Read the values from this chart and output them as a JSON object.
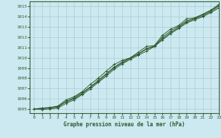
{
  "title": "Graphe pression niveau de la mer (hPa)",
  "bg_color": "#cce8f0",
  "grid_color": "#aacccc",
  "line_color": "#2d5a2d",
  "xlim": [
    -0.5,
    23
  ],
  "ylim": [
    1004.6,
    1015.5
  ],
  "yticks": [
    1005,
    1006,
    1007,
    1008,
    1009,
    1010,
    1011,
    1012,
    1013,
    1014,
    1015
  ],
  "xticks": [
    0,
    1,
    2,
    3,
    4,
    5,
    6,
    7,
    8,
    9,
    10,
    11,
    12,
    13,
    14,
    15,
    16,
    17,
    18,
    19,
    20,
    21,
    22,
    23
  ],
  "series": [
    [
      1005.0,
      1005.1,
      1005.15,
      1005.3,
      1005.9,
      1006.2,
      1006.7,
      1007.4,
      1008.0,
      1008.7,
      1009.35,
      1009.75,
      1010.0,
      1010.55,
      1011.1,
      1011.2,
      1012.2,
      1012.8,
      1013.15,
      1013.8,
      1013.9,
      1014.25,
      1014.65,
      1015.2
    ],
    [
      1005.0,
      1005.05,
      1005.1,
      1005.2,
      1005.7,
      1006.0,
      1006.5,
      1007.1,
      1007.7,
      1008.35,
      1009.05,
      1009.5,
      1009.95,
      1010.35,
      1010.85,
      1011.1,
      1011.85,
      1012.45,
      1012.95,
      1013.5,
      1013.8,
      1014.1,
      1014.5,
      1015.0
    ],
    [
      1005.0,
      1004.95,
      1005.0,
      1005.1,
      1005.55,
      1005.9,
      1006.4,
      1006.95,
      1007.6,
      1008.2,
      1008.9,
      1009.4,
      1009.85,
      1010.25,
      1010.65,
      1011.1,
      1011.75,
      1012.35,
      1012.85,
      1013.4,
      1013.7,
      1014.0,
      1014.4,
      1014.85
    ],
    [
      1005.0,
      1005.05,
      1005.15,
      1005.25,
      1005.75,
      1006.1,
      1006.6,
      1007.15,
      1007.8,
      1008.45,
      1009.1,
      1009.6,
      1010.0,
      1010.4,
      1010.9,
      1011.15,
      1012.0,
      1012.6,
      1013.05,
      1013.6,
      1013.85,
      1014.2,
      1014.6,
      1015.1
    ]
  ]
}
